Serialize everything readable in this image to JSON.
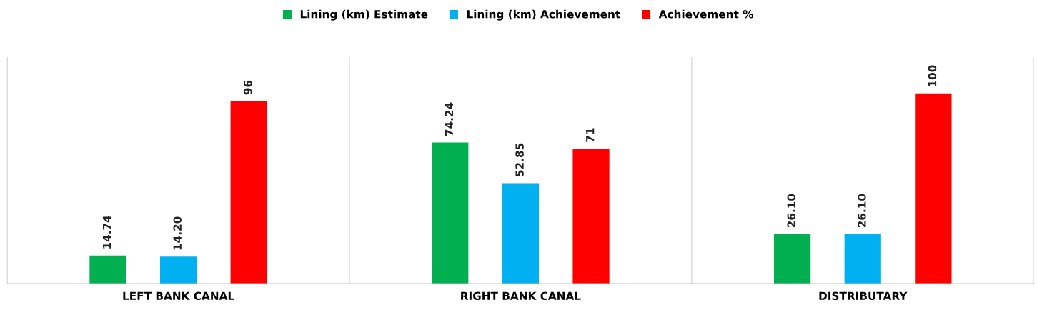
{
  "chart_data": {
    "type": "bar",
    "categories": [
      "LEFT BANK CANAL",
      "RIGHT BANK CANAL",
      "DISTRIBUTARY"
    ],
    "series": [
      {
        "name": "Lining (km) Estimate",
        "color": "#00b050",
        "values": [
          14.74,
          74.24,
          26.1
        ],
        "value_labels": [
          "14.74",
          "74.24",
          "26.10"
        ]
      },
      {
        "name": "Lining (km) Achievement",
        "color": "#00b0f0",
        "values": [
          14.2,
          52.85,
          26.1
        ],
        "value_labels": [
          "14.20",
          "52.85",
          "26.10"
        ]
      },
      {
        "name": "Achievement %",
        "color": "#ff0000",
        "values": [
          96,
          71,
          100
        ],
        "value_labels": [
          "96",
          "71",
          "100"
        ]
      }
    ],
    "legend": "top",
    "grid": "x",
    "tick_labels": "x"
  }
}
